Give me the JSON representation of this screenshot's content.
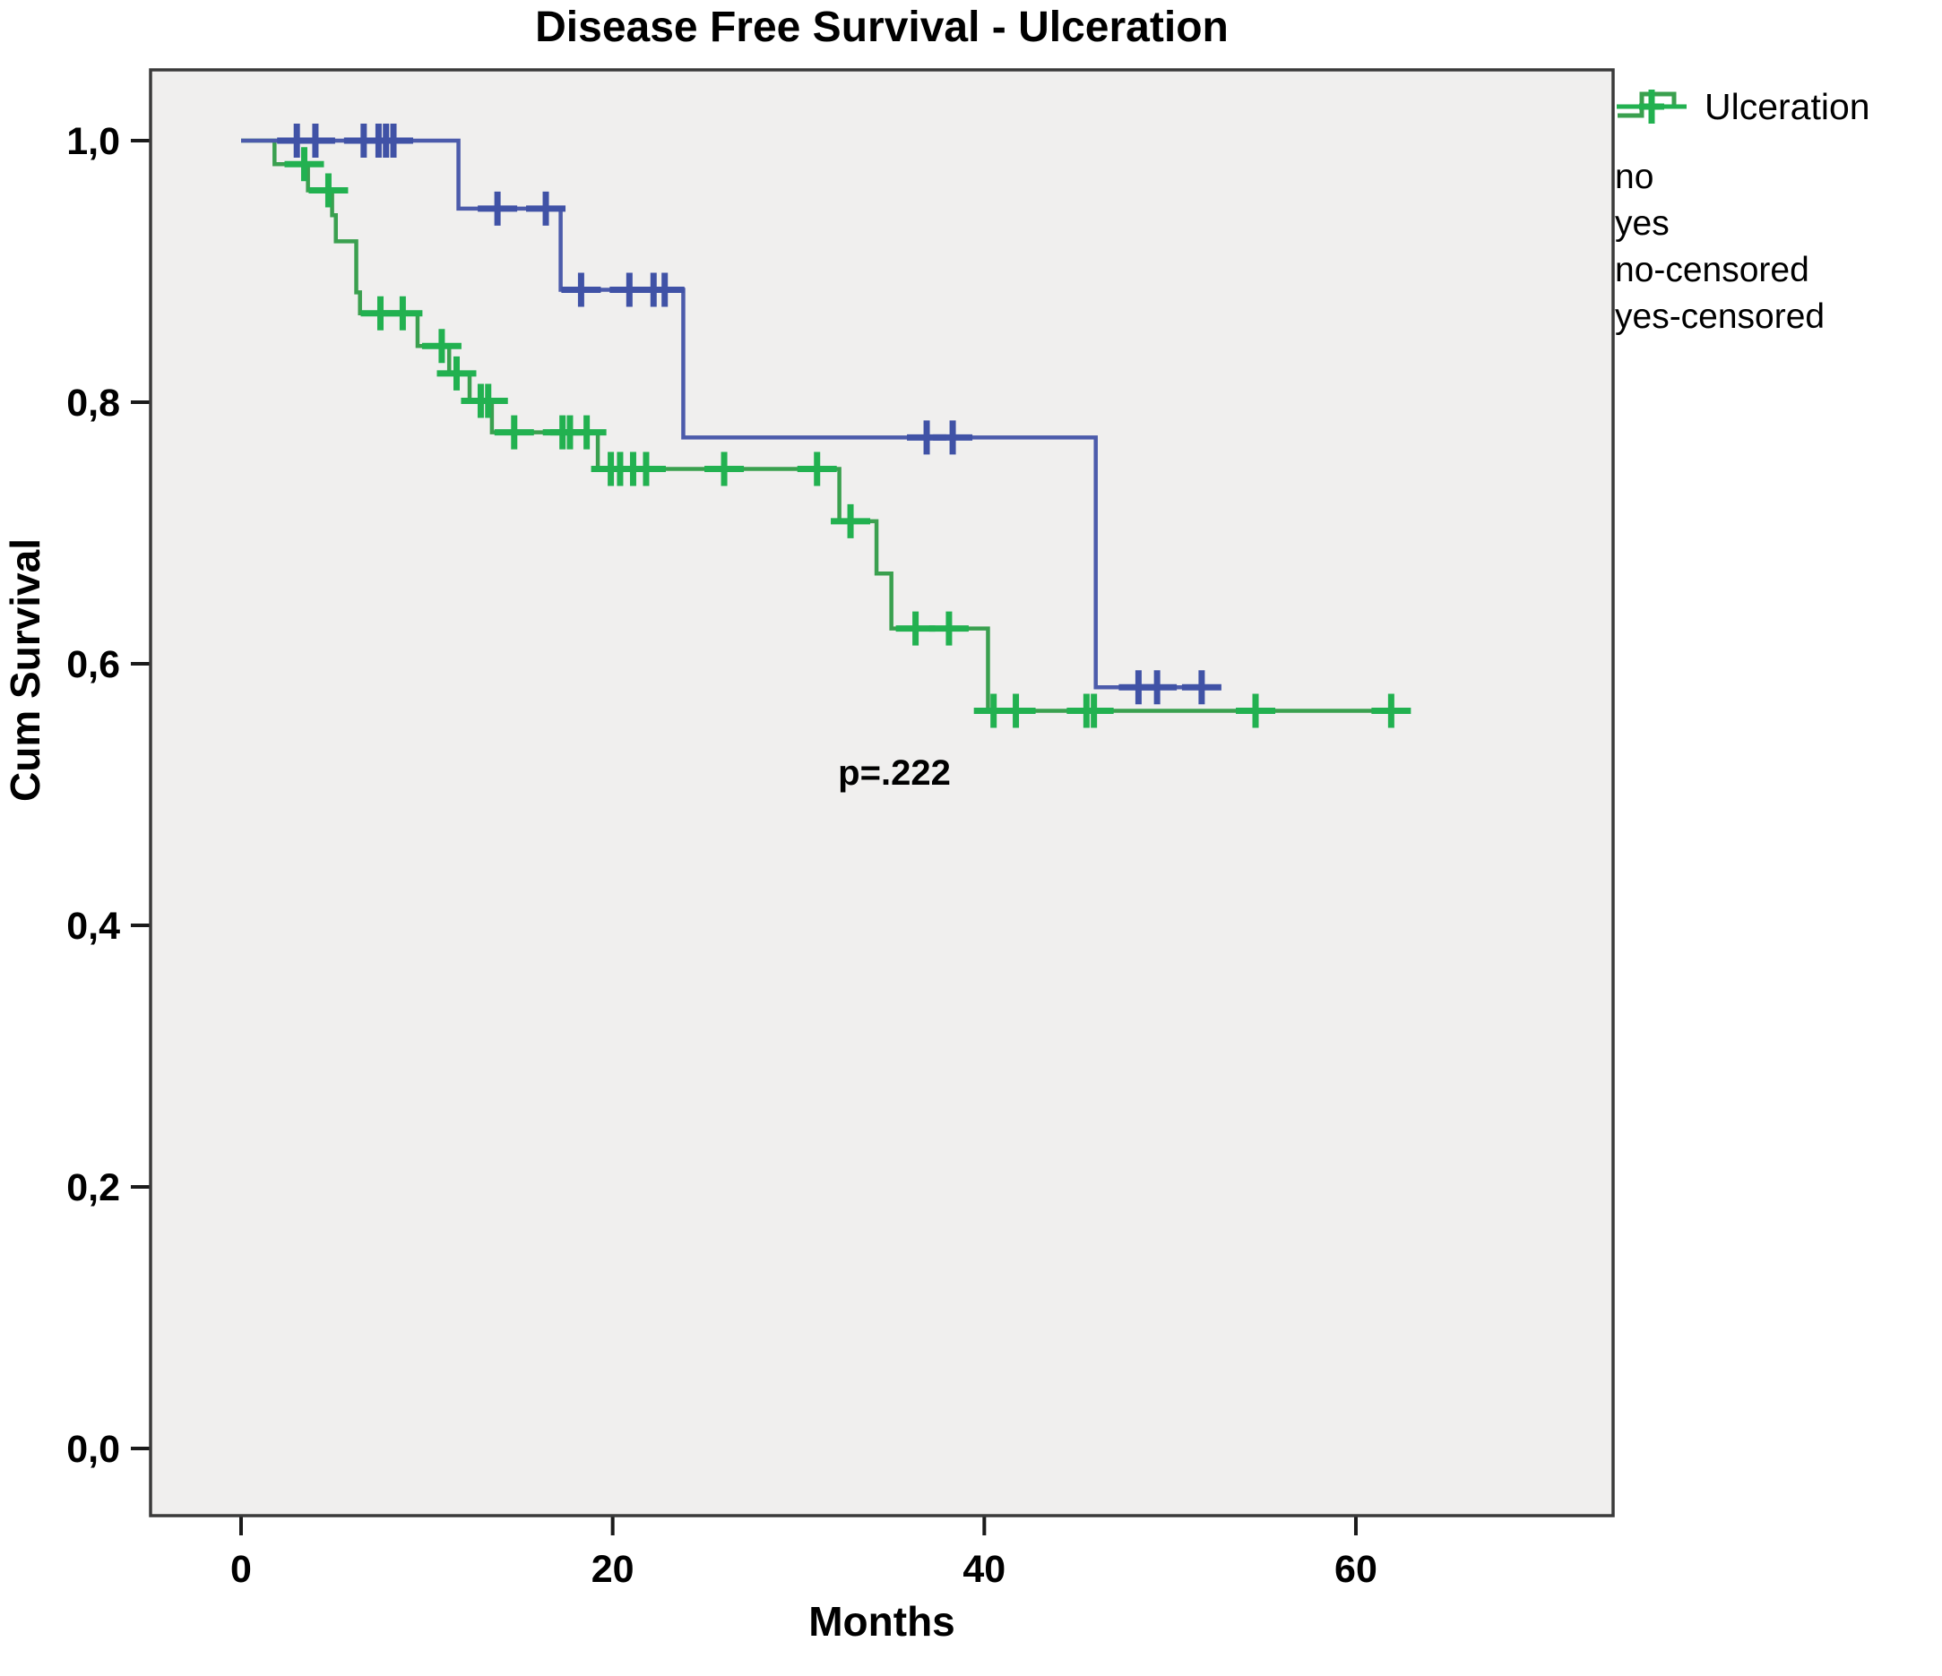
{
  "title": "Disease Free Survival - Ulceration",
  "annotation": {
    "p_value_label": "p=.222"
  },
  "legend": {
    "title": "Ulceration",
    "items": [
      {
        "label": "no",
        "type": "step",
        "color": "#4c5bab"
      },
      {
        "label": "yes",
        "type": "step",
        "color": "#3aa04f"
      },
      {
        "label": "no-censored",
        "type": "censor",
        "color": "#4052a6"
      },
      {
        "label": "yes-censored",
        "type": "censor",
        "color": "#22b150"
      }
    ]
  },
  "chart_data": {
    "type": "line",
    "subtype": "kaplan-meier-step",
    "title": "Disease Free Survival - Ulceration",
    "xlabel": "Months",
    "ylabel": "Cum Survival",
    "xlim": [
      -4.9,
      73.8
    ],
    "ylim": [
      -0.065,
      1.054
    ],
    "grid": false,
    "legend_position": "right-outside",
    "plot_bg_color": "#f0efee",
    "border_color": "#3a3a3a",
    "x_ticks": [
      0,
      20,
      40,
      60
    ],
    "y_ticks": [
      {
        "value": 1.0,
        "label": "1,0"
      },
      {
        "value": 0.8,
        "label": "0,8"
      },
      {
        "value": 0.6,
        "label": "0,6"
      },
      {
        "value": 0.4,
        "label": "0,4"
      },
      {
        "value": 0.2,
        "label": "0,2"
      },
      {
        "value": 0.0,
        "label": "0,0"
      }
    ],
    "annotation": {
      "text": "p=.222",
      "x": 35,
      "y": 0.515
    },
    "series": [
      {
        "name": "yes",
        "line_color": "#3aa04f",
        "censor_color": "#22b150",
        "start": [
          0,
          1.0
        ],
        "steps": [
          [
            1.8,
            0.982
          ],
          [
            3.6,
            0.962
          ],
          [
            4.9,
            0.943
          ],
          [
            5.1,
            0.923
          ],
          [
            6.2,
            0.884
          ],
          [
            6.4,
            0.868
          ],
          [
            9.5,
            0.843
          ],
          [
            11.2,
            0.822
          ],
          [
            12.3,
            0.801
          ],
          [
            13.5,
            0.777
          ],
          [
            19.2,
            0.749
          ],
          [
            32.2,
            0.709
          ],
          [
            34.2,
            0.669
          ],
          [
            35.0,
            0.627
          ],
          [
            40.2,
            0.564
          ]
        ],
        "end_x": 62.5,
        "censored": [
          [
            3.4,
            0.982
          ],
          [
            4.7,
            0.962
          ],
          [
            7.5,
            0.868
          ],
          [
            8.7,
            0.868
          ],
          [
            10.8,
            0.843
          ],
          [
            11.6,
            0.822
          ],
          [
            12.9,
            0.801
          ],
          [
            13.3,
            0.801
          ],
          [
            14.7,
            0.777
          ],
          [
            17.3,
            0.777
          ],
          [
            17.7,
            0.777
          ],
          [
            18.6,
            0.777
          ],
          [
            19.9,
            0.749
          ],
          [
            20.4,
            0.749
          ],
          [
            21.1,
            0.749
          ],
          [
            21.8,
            0.749
          ],
          [
            26.0,
            0.749
          ],
          [
            31.0,
            0.749
          ],
          [
            32.8,
            0.709
          ],
          [
            36.3,
            0.627
          ],
          [
            38.1,
            0.627
          ],
          [
            40.5,
            0.564
          ],
          [
            41.7,
            0.564
          ],
          [
            45.5,
            0.564
          ],
          [
            45.9,
            0.564
          ],
          [
            54.6,
            0.564
          ],
          [
            61.9,
            0.564
          ]
        ]
      },
      {
        "name": "no",
        "line_color": "#4c5bab",
        "censor_color": "#4052a6",
        "start": [
          0,
          1.0
        ],
        "steps": [
          [
            11.7,
            0.948
          ],
          [
            17.2,
            0.886
          ],
          [
            23.8,
            0.773
          ],
          [
            46.0,
            0.582
          ]
        ],
        "end_x": 52.4,
        "censored": [
          [
            3.0,
            1.0
          ],
          [
            4.0,
            1.0
          ],
          [
            6.6,
            1.0
          ],
          [
            7.4,
            1.0
          ],
          [
            7.8,
            1.0
          ],
          [
            8.2,
            1.0
          ],
          [
            13.8,
            0.948
          ],
          [
            16.4,
            0.948
          ],
          [
            18.3,
            0.886
          ],
          [
            20.9,
            0.886
          ],
          [
            22.2,
            0.886
          ],
          [
            22.8,
            0.886
          ],
          [
            36.9,
            0.773
          ],
          [
            38.3,
            0.773
          ],
          [
            48.3,
            0.582
          ],
          [
            49.3,
            0.582
          ],
          [
            51.7,
            0.582
          ]
        ]
      }
    ]
  }
}
